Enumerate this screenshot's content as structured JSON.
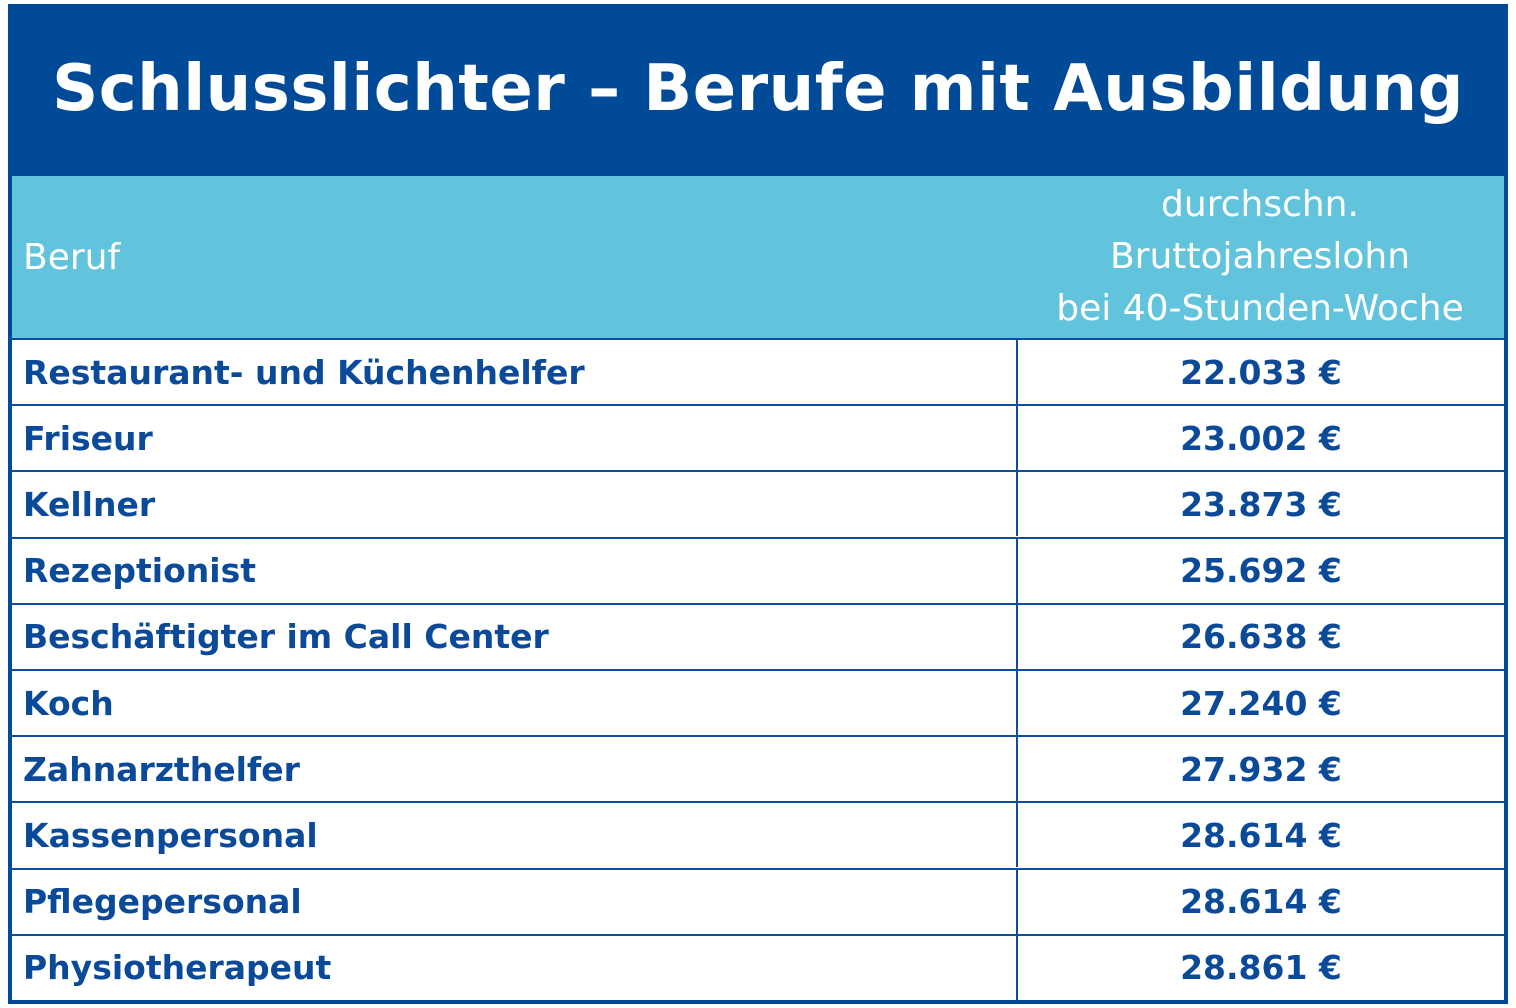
{
  "chart_data": {
    "type": "table",
    "title": "Schlusslichter – Berufe mit Ausbildung",
    "columns": [
      "Beruf",
      [
        "durchschn.",
        "Bruttojahreslohn",
        "bei 40-Stunden-Woche"
      ]
    ],
    "rows": [
      {
        "beruf": "Restaurant- und Küchenhelfer",
        "value": "22.033 €"
      },
      {
        "beruf": "Friseur",
        "value": "23.002 €"
      },
      {
        "beruf": "Kellner",
        "value": "23.873 €"
      },
      {
        "beruf": "Rezeptionist",
        "value": "25.692 €"
      },
      {
        "beruf": "Beschäftigter im Call Center",
        "value": "26.638 €"
      },
      {
        "beruf": "Koch",
        "value": "27.240 €"
      },
      {
        "beruf": "Zahnarzthelfer",
        "value": "27.932 €"
      },
      {
        "beruf": "Kassenpersonal",
        "value": "28.614 €"
      },
      {
        "beruf": "Pflegepersonal",
        "value": "28.614 €"
      },
      {
        "beruf": "Physiotherapeut",
        "value": "28.861 €"
      }
    ]
  },
  "colors": {
    "title_background": "#004a98",
    "header_background": "#62c3dc",
    "text": "#0a4a98",
    "header_text": "#ffffff"
  }
}
